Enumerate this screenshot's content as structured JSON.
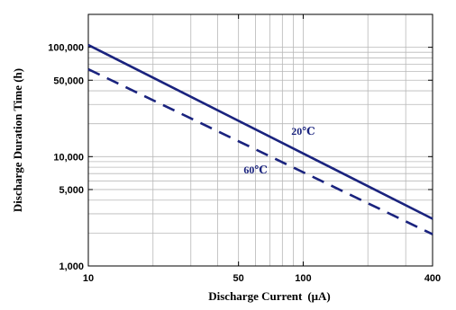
{
  "chart_data": {
    "type": "line",
    "title": "",
    "xlabel": "Discharge Current",
    "xlabel_unit": "(μA)",
    "ylabel": "Discharge Duration Time (h)",
    "x_scale": "log",
    "y_scale": "log",
    "xlim": [
      10,
      400
    ],
    "ylim": [
      1000,
      200000
    ],
    "grid": true,
    "x_ticks": [
      {
        "value": 10,
        "label": "10"
      },
      {
        "value": 50,
        "label": "50"
      },
      {
        "value": 100,
        "label": "100"
      },
      {
        "value": 400,
        "label": "400"
      }
    ],
    "y_ticks": [
      {
        "value": 1000,
        "label": "1,000"
      },
      {
        "value": 5000,
        "label": "5,000"
      },
      {
        "value": 10000,
        "label": "10,000"
      },
      {
        "value": 50000,
        "label": "50,000"
      },
      {
        "value": 100000,
        "label": "100,000"
      }
    ],
    "series": [
      {
        "name": "20℃",
        "style": "solid",
        "color": "#1a237e",
        "x": [
          10,
          400
        ],
        "y": [
          105000,
          2700
        ],
        "label_at": [
          100,
          15800
        ]
      },
      {
        "name": "60℃",
        "style": "dashed",
        "color": "#1a237e",
        "x": [
          10,
          400
        ],
        "y": [
          63000,
          1950
        ],
        "label_at": [
          60,
          7000
        ]
      }
    ]
  }
}
